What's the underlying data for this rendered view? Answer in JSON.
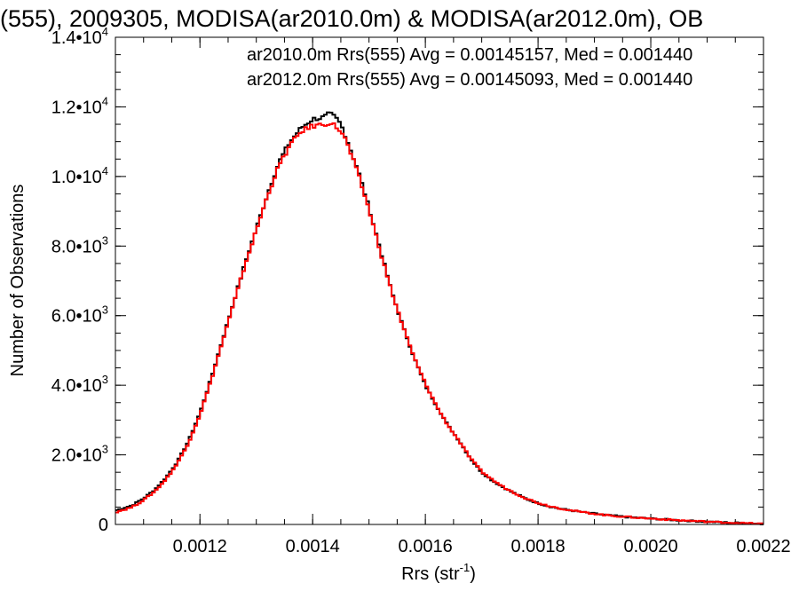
{
  "chart_data": {
    "type": "line",
    "title": "(555), 2009305, MODISA(ar2010.0m) & MODISA(ar2012.0m), OB",
    "xlabel_main": "Rrs (str",
    "xlabel_sup": "-1",
    "xlabel_close": ")",
    "ylabel": "Number of Observations",
    "xlim": [
      0.00105,
      0.0022
    ],
    "ylim": [
      0,
      14000
    ],
    "x_ticks": [
      {
        "value": 0.0012,
        "label": "0.0012"
      },
      {
        "value": 0.0014,
        "label": "0.0014"
      },
      {
        "value": 0.0016,
        "label": "0.0016"
      },
      {
        "value": 0.0018,
        "label": "0.0018"
      },
      {
        "value": 0.002,
        "label": "0.0020"
      },
      {
        "value": 0.0022,
        "label": "0.0022"
      }
    ],
    "y_ticks": [
      {
        "value": 0,
        "mant": "0",
        "exp": ""
      },
      {
        "value": 2000,
        "mant": "2.0•10",
        "exp": "3"
      },
      {
        "value": 4000,
        "mant": "4.0•10",
        "exp": "3"
      },
      {
        "value": 6000,
        "mant": "6.0•10",
        "exp": "3"
      },
      {
        "value": 8000,
        "mant": "8.0•10",
        "exp": "3"
      },
      {
        "value": 10000,
        "mant": "1.0•10",
        "exp": "4"
      },
      {
        "value": 12000,
        "mant": "1.2•10",
        "exp": "4"
      },
      {
        "value": 14000,
        "mant": "1.4•10",
        "exp": "4"
      }
    ],
    "legend": [
      {
        "text": "ar2010.0m Rrs(555) Avg = 0.00145157, Med = 0.001440",
        "color": "#000000"
      },
      {
        "text": "ar2012.0m Rrs(555) Avg = 0.00145093, Med = 0.001440",
        "color": "#ff0000"
      }
    ],
    "series": [
      {
        "name": "ar2010.0m Rrs(555)",
        "color": "#000000",
        "x": [
          0.00105,
          0.00108,
          0.0011,
          0.00112,
          0.00114,
          0.00116,
          0.00118,
          0.0012,
          0.00122,
          0.00124,
          0.00126,
          0.00128,
          0.0013,
          0.00132,
          0.00134,
          0.00136,
          0.00138,
          0.0014,
          0.00142,
          0.00143,
          0.00144,
          0.00145,
          0.00146,
          0.00148,
          0.0015,
          0.00152,
          0.00154,
          0.00156,
          0.00158,
          0.0016,
          0.00162,
          0.00164,
          0.00166,
          0.00168,
          0.0017,
          0.00172,
          0.00174,
          0.00176,
          0.00178,
          0.0018,
          0.00182,
          0.00184,
          0.00186,
          0.00188,
          0.0019,
          0.00192,
          0.00194,
          0.00196,
          0.00198,
          0.002,
          0.00202,
          0.00204,
          0.00206,
          0.00208,
          0.0021,
          0.00212,
          0.00214,
          0.00216,
          0.00218,
          0.0022
        ],
        "y": [
          400,
          550,
          750,
          1000,
          1350,
          1800,
          2400,
          3200,
          4200,
          5300,
          6400,
          7500,
          8500,
          9500,
          10400,
          11000,
          11400,
          11650,
          11700,
          11800,
          11700,
          11500,
          11100,
          10200,
          9100,
          7900,
          6700,
          5700,
          4800,
          4000,
          3400,
          2850,
          2400,
          1900,
          1500,
          1250,
          1050,
          880,
          730,
          610,
          520,
          450,
          400,
          350,
          310,
          270,
          240,
          210,
          190,
          170,
          150,
          130,
          110,
          95,
          80,
          65,
          50,
          40,
          30,
          20
        ]
      },
      {
        "name": "ar2012.0m Rrs(555)",
        "color": "#ff0000",
        "x": [
          0.00105,
          0.00108,
          0.0011,
          0.00112,
          0.00114,
          0.00116,
          0.00118,
          0.0012,
          0.00122,
          0.00124,
          0.00126,
          0.00128,
          0.0013,
          0.00132,
          0.00134,
          0.00136,
          0.00138,
          0.0014,
          0.00142,
          0.00143,
          0.00144,
          0.00145,
          0.00146,
          0.00148,
          0.0015,
          0.00152,
          0.00154,
          0.00156,
          0.00158,
          0.0016,
          0.00162,
          0.00164,
          0.00166,
          0.00168,
          0.0017,
          0.00172,
          0.00174,
          0.00176,
          0.00178,
          0.0018,
          0.00182,
          0.00184,
          0.00186,
          0.00188,
          0.0019,
          0.00192,
          0.00194,
          0.00196,
          0.00198,
          0.002,
          0.00202,
          0.00204,
          0.00206,
          0.00208,
          0.0021,
          0.00212,
          0.00214,
          0.00216,
          0.00218,
          0.0022
        ],
        "y": [
          350,
          500,
          700,
          950,
          1300,
          1750,
          2350,
          3150,
          4150,
          5250,
          6350,
          7450,
          8450,
          9450,
          10300,
          10900,
          11300,
          11450,
          11500,
          11550,
          11450,
          11300,
          11000,
          10100,
          9050,
          7850,
          6700,
          5700,
          4800,
          4050,
          3400,
          2850,
          2400,
          1900,
          1520,
          1270,
          1060,
          890,
          740,
          620,
          530,
          460,
          400,
          350,
          310,
          270,
          240,
          215,
          190,
          170,
          150,
          130,
          112,
          96,
          82,
          66,
          52,
          40,
          30,
          20
        ]
      }
    ]
  }
}
